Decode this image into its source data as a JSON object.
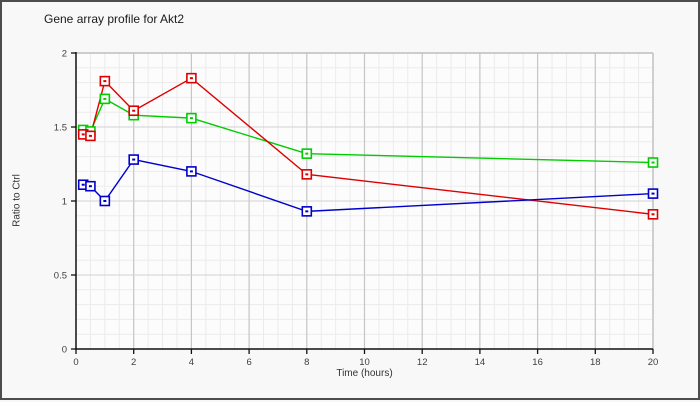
{
  "window": {
    "background_color": "#f8f8f8",
    "border_color": "#4d4d4d"
  },
  "chart_data": {
    "type": "line",
    "title": "Gene array profile for Akt2",
    "xlabel": "Time (hours)",
    "ylabel": "Ratio to Ctrl",
    "xlim": [
      0,
      20
    ],
    "ylim": [
      0,
      2
    ],
    "x_tick_labels": [
      "0",
      "2",
      "4",
      "6",
      "8",
      "10",
      "12",
      "14",
      "16",
      "18",
      "20"
    ],
    "x_tick_values": [
      0,
      2,
      4,
      6,
      8,
      10,
      12,
      14,
      16,
      18,
      20
    ],
    "y_tick_labels": [
      "0",
      "0.5",
      "1",
      "1.5",
      "2"
    ],
    "y_tick_values": [
      0,
      0.5,
      1,
      1.5,
      2
    ],
    "grid": {
      "on": true,
      "minor_x_step": 0.5,
      "minor_y_step": 0.1,
      "major_x_step": 2,
      "major_y_step": 0.5
    },
    "legend": "none",
    "marker": "open-square",
    "x": [
      0.25,
      0.5,
      1,
      2,
      4,
      8,
      20
    ],
    "series": [
      {
        "name": "green-series",
        "color": "#00cc00",
        "values": [
          1.48,
          1.47,
          1.69,
          1.58,
          1.56,
          1.32,
          1.26
        ]
      },
      {
        "name": "red-series",
        "color": "#dd0000",
        "values": [
          1.45,
          1.44,
          1.81,
          1.61,
          1.83,
          1.18,
          0.91
        ]
      },
      {
        "name": "blue-series",
        "color": "#0000cc",
        "values": [
          1.11,
          1.1,
          1.0,
          1.28,
          1.2,
          0.93,
          1.05
        ]
      }
    ]
  }
}
